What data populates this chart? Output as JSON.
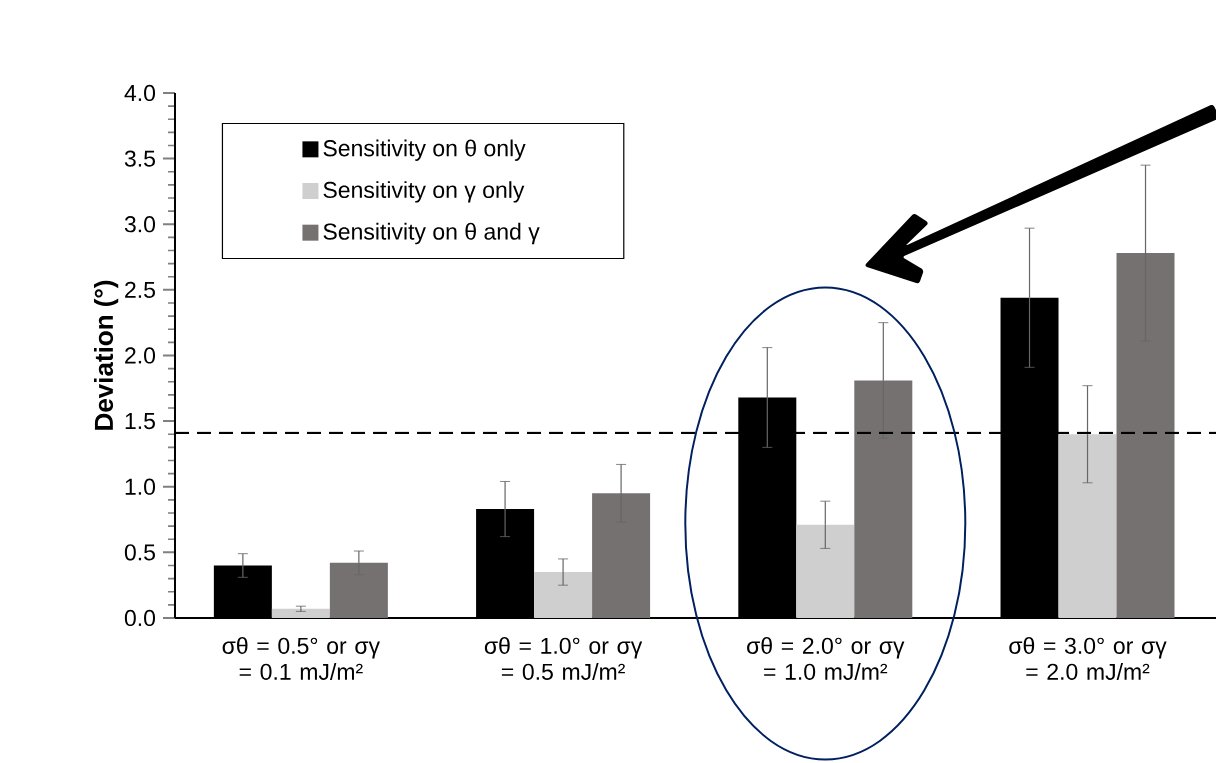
{
  "chart_data": {
    "type": "bar",
    "ylabel": "Deviation (°)",
    "categories": [
      "σθ = 0.5° or σγ = 0.1 mJ/m²",
      "σθ = 1.0° or σγ = 0.5 mJ/m²",
      "σθ = 2.0° or σγ = 1.0 mJ/m²",
      "σθ = 3.0° or σγ = 2.0 mJ/m²"
    ],
    "series": [
      {
        "name": "Sensitivity on θ only",
        "color": "#000000",
        "values": [
          0.4,
          0.83,
          1.68,
          2.44
        ],
        "errors": [
          0.09,
          0.21,
          0.38,
          0.53
        ]
      },
      {
        "name": "Sensitivity on γ only",
        "color": "#d0cfcf",
        "values": [
          0.07,
          0.35,
          0.71,
          1.4
        ],
        "errors": [
          0.02,
          0.1,
          0.18,
          0.37
        ]
      },
      {
        "name": "Sensitivity on θ and γ",
        "color": "#757170",
        "values": [
          0.42,
          0.95,
          1.81,
          2.78
        ],
        "errors": [
          0.09,
          0.22,
          0.44,
          0.67
        ]
      }
    ],
    "ylim": [
      0,
      4.0
    ],
    "yticks": [
      {
        "value": 0,
        "label": "0.0"
      },
      {
        "value": 0.5,
        "label": "0.5"
      },
      {
        "value": 1.0,
        "label": "1.0"
      },
      {
        "value": 1.5,
        "label": "1.5"
      },
      {
        "value": 2.0,
        "label": "2.0"
      },
      {
        "value": 2.5,
        "label": "2.5"
      },
      {
        "value": 3.0,
        "label": "3.0"
      },
      {
        "value": 3.5,
        "label": "3.5"
      },
      {
        "value": 4.0,
        "label": "4.0"
      }
    ],
    "ref_lines": [
      {
        "axis": "y",
        "value": 1.41,
        "color": "#000000",
        "line_style": "dashed"
      }
    ],
    "legend": "top left",
    "grid": false
  }
}
